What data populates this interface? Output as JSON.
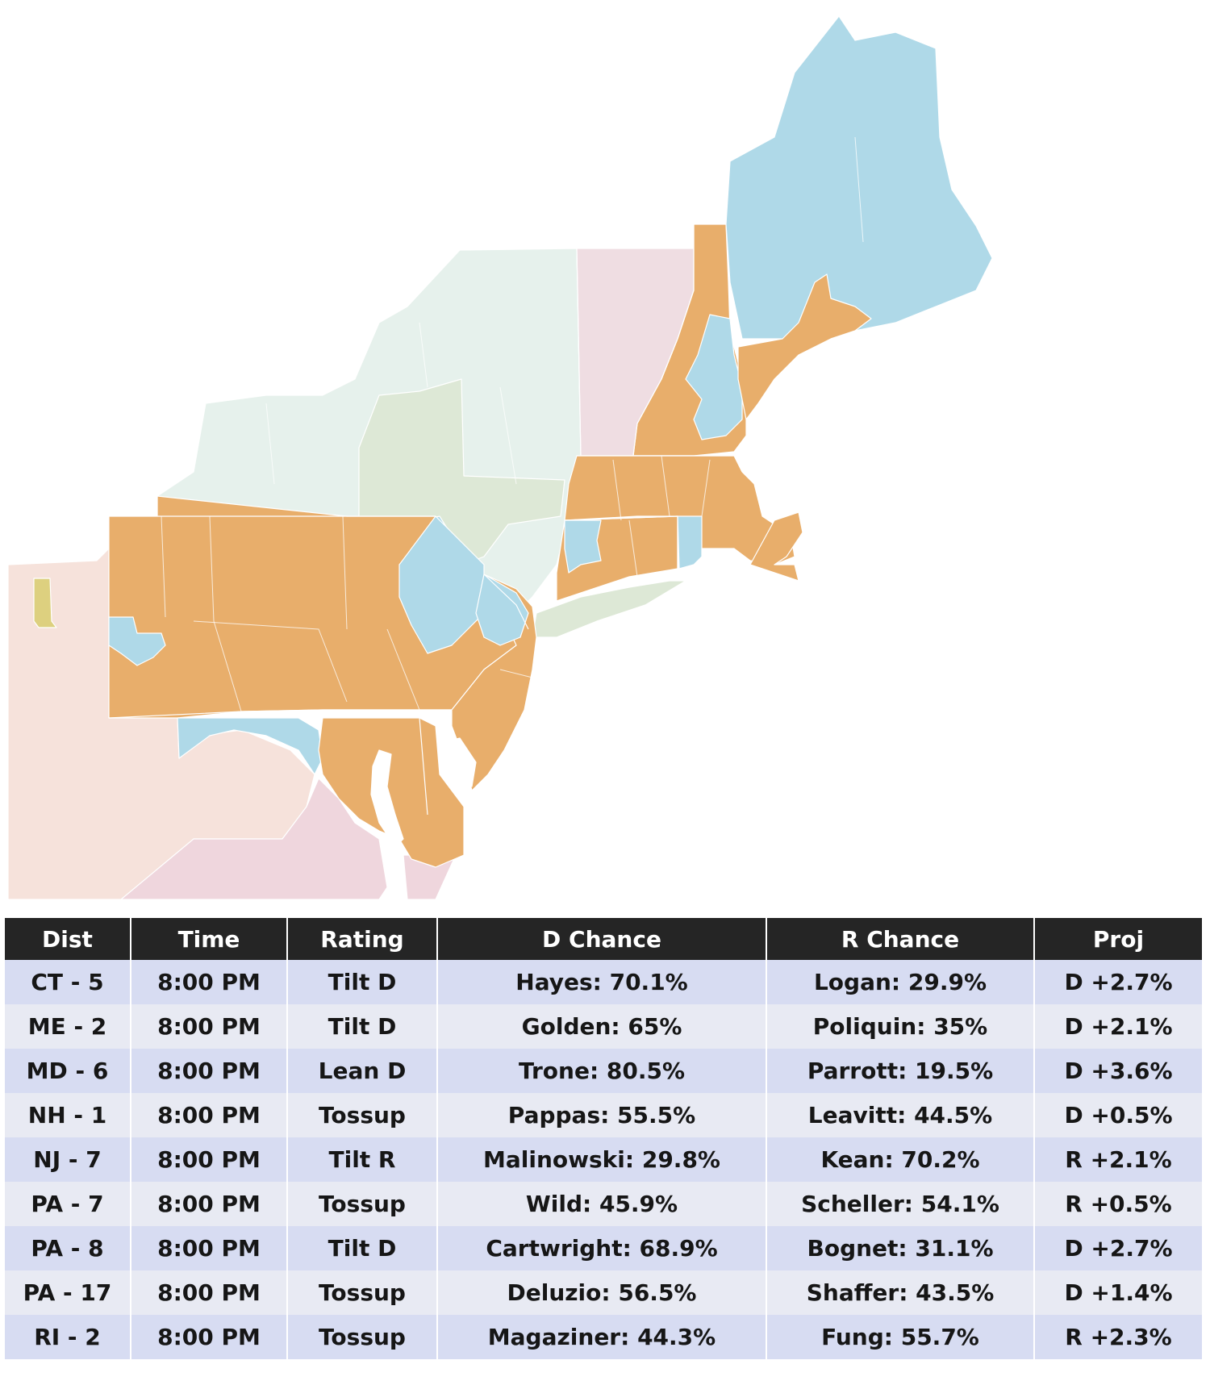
{
  "map": {
    "colors": {
      "ny_green_light": "#e6f1ec",
      "ny_green_mid": "#dde8d6",
      "vt_pink": "#efdde2",
      "orange": "#e8ae6b",
      "blue": "#afd9e8",
      "west_pink": "#f6e2db",
      "sw_pink": "#efd6dd",
      "olive": "#ddd07f"
    }
  },
  "table": {
    "headers": [
      "Dist",
      "Time",
      "Rating",
      "D Chance",
      "R Chance",
      "Proj"
    ],
    "rows": [
      {
        "dist": "CT - 5",
        "time": "8:00 PM",
        "rating": "Tilt D",
        "d_chance": "Hayes: 70.1%",
        "r_chance": "Logan: 29.9%",
        "proj": "D +2.7%"
      },
      {
        "dist": "ME - 2",
        "time": "8:00 PM",
        "rating": "Tilt D",
        "d_chance": "Golden: 65%",
        "r_chance": "Poliquin: 35%",
        "proj": "D +2.1%"
      },
      {
        "dist": "MD - 6",
        "time": "8:00 PM",
        "rating": "Lean D",
        "d_chance": "Trone: 80.5%",
        "r_chance": "Parrott: 19.5%",
        "proj": "D +3.6%"
      },
      {
        "dist": "NH - 1",
        "time": "8:00 PM",
        "rating": "Tossup",
        "d_chance": "Pappas: 55.5%",
        "r_chance": "Leavitt: 44.5%",
        "proj": "D +0.5%"
      },
      {
        "dist": "NJ - 7",
        "time": "8:00 PM",
        "rating": "Tilt R",
        "d_chance": "Malinowski: 29.8%",
        "r_chance": "Kean: 70.2%",
        "proj": "R +2.1%"
      },
      {
        "dist": "PA - 7",
        "time": "8:00 PM",
        "rating": "Tossup",
        "d_chance": "Wild: 45.9%",
        "r_chance": "Scheller: 54.1%",
        "proj": "R +0.5%"
      },
      {
        "dist": "PA - 8",
        "time": "8:00 PM",
        "rating": "Tilt D",
        "d_chance": "Cartwright: 68.9%",
        "r_chance": "Bognet: 31.1%",
        "proj": "D +2.7%"
      },
      {
        "dist": "PA - 17",
        "time": "8:00 PM",
        "rating": "Tossup",
        "d_chance": "Deluzio: 56.5%",
        "r_chance": "Shaffer: 43.5%",
        "proj": "D +1.4%"
      },
      {
        "dist": "RI - 2",
        "time": "8:00 PM",
        "rating": "Tossup",
        "d_chance": "Magaziner: 44.3%",
        "r_chance": "Fung: 55.7%",
        "proj": "R +2.3%"
      }
    ]
  }
}
